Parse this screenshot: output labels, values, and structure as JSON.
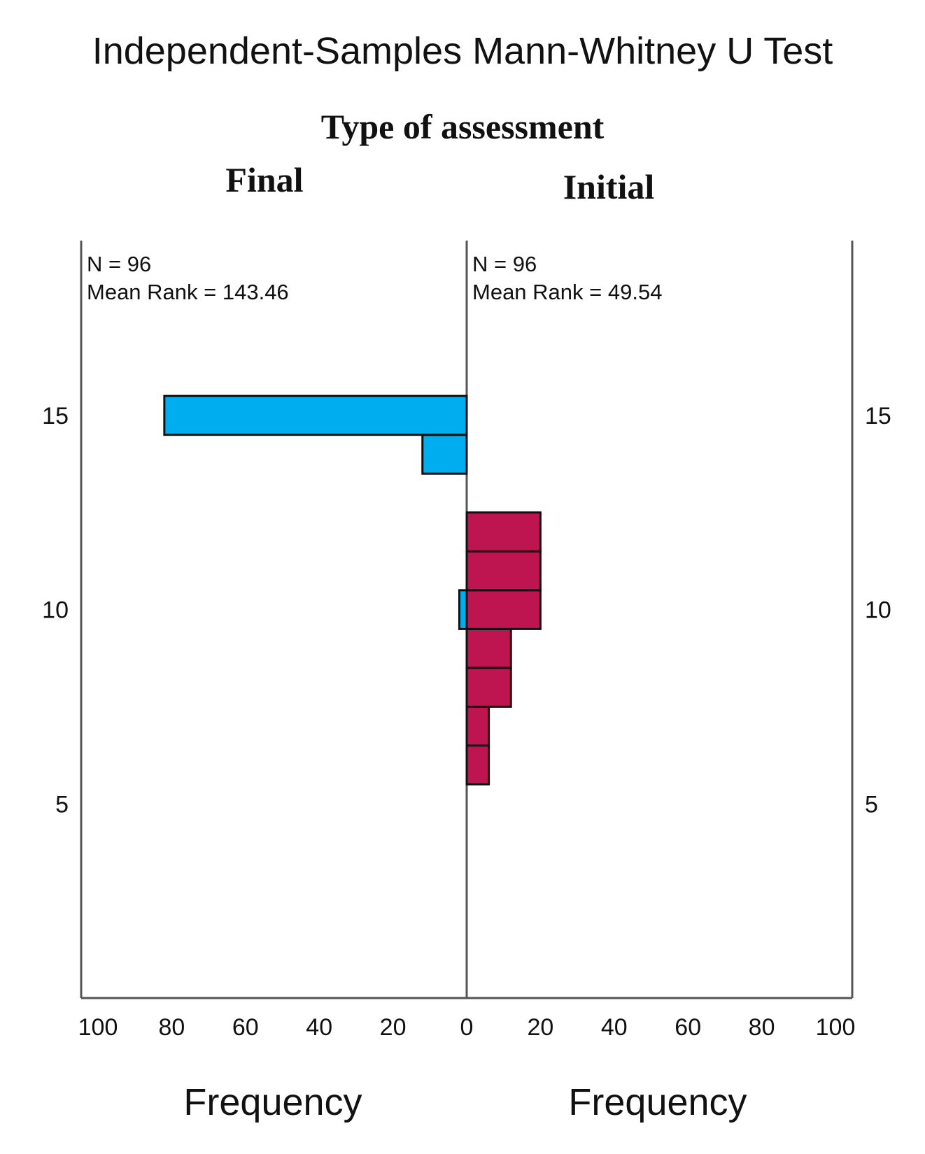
{
  "chart_data": {
    "type": "bar",
    "orientation": "population-pyramid",
    "title": "Independent-Samples Mann-Whitney U Test",
    "subtitle": "Type of assessment",
    "y_ticks": [
      5,
      10,
      15
    ],
    "ylim": [
      0,
      19.5
    ],
    "x_ticks_left": [
      "100",
      "80",
      "60",
      "40",
      "20",
      "0"
    ],
    "x_ticks_right": [
      "20",
      "40",
      "60",
      "80",
      "100"
    ],
    "xlim": [
      0,
      100
    ],
    "xlabel_left": "Frequency",
    "xlabel_right": "Frequency",
    "bin_width": 1,
    "groups": [
      {
        "name": "Final",
        "side": "left",
        "color": "#00AEEF",
        "n_label": "N = 96",
        "mean_rank_label": "Mean Rank = 143.46",
        "bins": [
          {
            "center": 10,
            "count": 2
          },
          {
            "center": 14,
            "count": 12
          },
          {
            "center": 15,
            "count": 82
          }
        ]
      },
      {
        "name": "Initial",
        "side": "right",
        "color": "#BE1550",
        "n_label": "N = 96",
        "mean_rank_label": "Mean Rank = 49.54",
        "bins": [
          {
            "center": 6,
            "count": 6
          },
          {
            "center": 7,
            "count": 6
          },
          {
            "center": 8,
            "count": 12
          },
          {
            "center": 9,
            "count": 12
          },
          {
            "center": 10,
            "count": 20
          },
          {
            "center": 11,
            "count": 20
          },
          {
            "center": 12,
            "count": 20
          }
        ]
      }
    ]
  }
}
